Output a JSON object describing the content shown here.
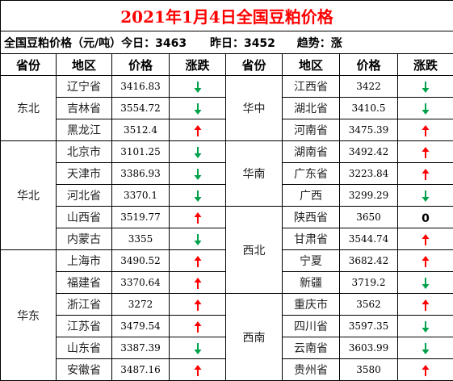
{
  "title": "2021年1月4日全国豆粕价格",
  "summary": {
    "today": "全国豆粕价格（元/吨）今日：3463",
    "yesterday": "昨日：3452",
    "trend": "趋势：涨"
  },
  "headers": [
    "省份",
    "地区",
    "价格",
    "涨跌",
    "省份",
    "地区",
    "价格",
    "涨跌"
  ],
  "colors": {
    "up": "#ff0000",
    "down": "#00a14b",
    "title": "#ff0000"
  },
  "left_regions": [
    "东北",
    "华北",
    "华东"
  ],
  "right_regions": [
    "华中",
    "华南",
    "西北",
    "西南"
  ],
  "left_rows": [
    {
      "area": "辽宁省",
      "price": "3416.83",
      "trend": "down"
    },
    {
      "area": "吉林省",
      "price": "3554.72",
      "trend": "down"
    },
    {
      "area": "黑龙江",
      "price": "3512.4",
      "trend": "up"
    },
    {
      "area": "北京市",
      "price": "3101.25",
      "trend": "down"
    },
    {
      "area": "天津市",
      "price": "3386.93",
      "trend": "down"
    },
    {
      "area": "河北省",
      "price": "3370.1",
      "trend": "down"
    },
    {
      "area": "山西省",
      "price": "3519.77",
      "trend": "up"
    },
    {
      "area": "内蒙古",
      "price": "3355",
      "trend": "down"
    },
    {
      "area": "上海市",
      "price": "3490.52",
      "trend": "up"
    },
    {
      "area": "福建省",
      "price": "3370.64",
      "trend": "up"
    },
    {
      "area": "浙江省",
      "price": "3272",
      "trend": "up"
    },
    {
      "area": "江苏省",
      "price": "3479.54",
      "trend": "up"
    },
    {
      "area": "山东省",
      "price": "3387.39",
      "trend": "down"
    },
    {
      "area": "安徽省",
      "price": "3487.16",
      "trend": "up"
    }
  ],
  "right_rows": [
    {
      "area": "江西省",
      "price": "3422",
      "trend": "down"
    },
    {
      "area": "湖北省",
      "price": "3410.5",
      "trend": "down"
    },
    {
      "area": "河南省",
      "price": "3475.39",
      "trend": "up"
    },
    {
      "area": "湖南省",
      "price": "3492.42",
      "trend": "up"
    },
    {
      "area": "广东省",
      "price": "3223.84",
      "trend": "up"
    },
    {
      "area": "广西",
      "price": "3299.29",
      "trend": "down"
    },
    {
      "area": "陕西省",
      "price": "3650",
      "trend": "flat",
      "change_text": "0"
    },
    {
      "area": "甘肃省",
      "price": "3544.74",
      "trend": "up"
    },
    {
      "area": "宁夏",
      "price": "3682.42",
      "trend": "up"
    },
    {
      "area": "新疆",
      "price": "3719.2",
      "trend": "down"
    },
    {
      "area": "重庆市",
      "price": "3562",
      "trend": "up"
    },
    {
      "area": "四川省",
      "price": "3597.35",
      "trend": "down"
    },
    {
      "area": "云南省",
      "price": "3603.99",
      "trend": "down"
    },
    {
      "area": "贵州省",
      "price": "3580",
      "trend": "up"
    }
  ]
}
